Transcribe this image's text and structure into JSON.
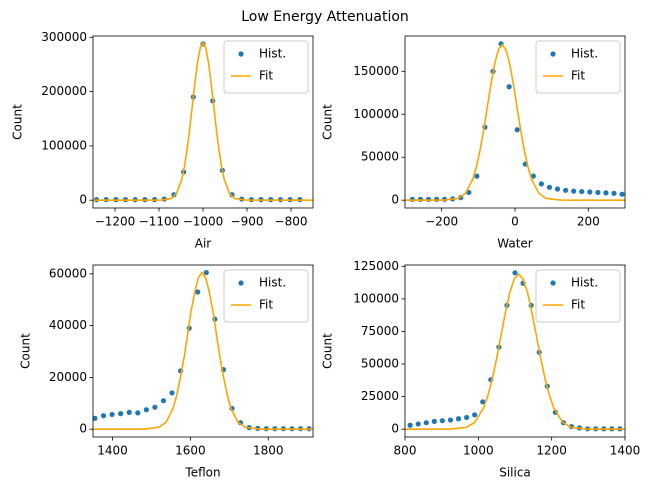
{
  "title": "Low Energy Attenuation",
  "chart_data": [
    {
      "type": "scatter",
      "x_label": "Air",
      "y_label": "Count",
      "legend": "upper right",
      "grid": false,
      "xlim": [
        -1250,
        -750
      ],
      "xticks": [
        {
          "value": -1200,
          "label": "−1200"
        },
        {
          "value": -1100,
          "label": "−1100"
        },
        {
          "value": -1000,
          "label": "−1000"
        },
        {
          "value": -900,
          "label": "−900"
        },
        {
          "value": -800,
          "label": "−800"
        }
      ],
      "ylim": [
        -14400,
        302400
      ],
      "yticks": [
        0,
        100000,
        200000,
        300000
      ],
      "series": [
        {
          "name": "Hist.",
          "type": "scatter",
          "color": "#1f77b4",
          "x": [
            -1242,
            -1220,
            -1198,
            -1176,
            -1154,
            -1132,
            -1110,
            -1088,
            -1066,
            -1044,
            -1022,
            -1000,
            -978,
            -956,
            -934,
            -912,
            -890,
            -868,
            -846,
            -824,
            -802,
            -780
          ],
          "values": [
            1000,
            1000,
            1000,
            1000,
            1000,
            1000,
            1000,
            2000,
            10000,
            52000,
            190000,
            288000,
            183000,
            55000,
            10000,
            2000,
            1000,
            1000,
            1000,
            1000,
            1000,
            1000
          ]
        },
        {
          "name": "Fit",
          "type": "line",
          "color": "#ffa500",
          "x": [
            -1250,
            -1096,
            -1072,
            -1060,
            -1048,
            -1042,
            -1036,
            -1030,
            -1024,
            -1018,
            -1012,
            -1006,
            -1000,
            -994,
            -988,
            -982,
            -976,
            -970,
            -964,
            -958,
            -952,
            -940,
            -928,
            -904,
            -750
          ],
          "values": [
            0,
            100,
            3200,
            12700,
            39200,
            62700,
            94200,
            132800,
            175900,
            218900,
            255900,
            281100,
            290000,
            281100,
            255900,
            218900,
            175900,
            132800,
            94200,
            62700,
            39200,
            12700,
            3200,
            100,
            0
          ]
        }
      ]
    },
    {
      "type": "scatter",
      "x_label": "Water",
      "y_label": "Count",
      "legend": "upper right",
      "grid": false,
      "xlim": [
        -300,
        300
      ],
      "xticks": [
        {
          "value": -200,
          "label": "−200"
        },
        0,
        200
      ],
      "ylim": [
        -9100,
        191100
      ],
      "yticks": [
        0,
        50000,
        100000,
        150000
      ],
      "series": [
        {
          "name": "Hist.",
          "type": "scatter",
          "color": "#1f77b4",
          "x": [
            -280,
            -258,
            -236,
            -214,
            -192,
            -170,
            -148,
            -126,
            -104,
            -82,
            -60,
            -38,
            -16,
            6,
            28,
            50,
            72,
            94,
            116,
            138,
            160,
            182,
            204,
            226,
            248,
            270,
            292
          ],
          "values": [
            1000,
            1000,
            1000,
            1000,
            1000,
            1500,
            3000,
            9000,
            28000,
            85000,
            150000,
            182000,
            132000,
            82000,
            42000,
            28000,
            19000,
            15000,
            13000,
            11500,
            10500,
            10000,
            9500,
            9000,
            8500,
            8000,
            7000
          ]
        },
        {
          "name": "Fit",
          "type": "line",
          "color": "#ffa500",
          "x": [
            -300,
            -195,
            -155,
            -135,
            -115,
            -105,
            -95,
            -85,
            -75,
            -65,
            -55,
            -45,
            -35,
            -25,
            -15,
            -5,
            5,
            15,
            25,
            35,
            45,
            65,
            85,
            125,
            300
          ],
          "values": [
            0,
            100,
            2000,
            7900,
            24500,
            39200,
            58800,
            82900,
            109800,
            136600,
            159700,
            175400,
            181000,
            175400,
            159700,
            136600,
            109800,
            82900,
            58800,
            39200,
            24500,
            7900,
            2000,
            100,
            0
          ]
        }
      ]
    },
    {
      "type": "scatter",
      "x_label": "Teflon",
      "y_label": "Count",
      "legend": "upper right",
      "grid": false,
      "xlim": [
        1350,
        1915
      ],
      "xticks": [
        1400,
        1600,
        1800
      ],
      "ylim": [
        -3020,
        63420
      ],
      "yticks": [
        0,
        20000,
        40000,
        60000
      ],
      "series": [
        {
          "name": "Hist.",
          "type": "scatter",
          "color": "#1f77b4",
          "x": [
            1355,
            1377,
            1399,
            1421,
            1443,
            1465,
            1487,
            1509,
            1531,
            1553,
            1575,
            1597,
            1619,
            1641,
            1663,
            1685,
            1707,
            1729,
            1751,
            1773,
            1795,
            1817,
            1839,
            1861,
            1883,
            1905
          ],
          "values": [
            4200,
            5200,
            5700,
            6000,
            6500,
            6300,
            7500,
            8500,
            11000,
            14000,
            22500,
            39000,
            53000,
            60500,
            42500,
            23000,
            8000,
            2500,
            600,
            300,
            200,
            200,
            200,
            200,
            200,
            200
          ]
        },
        {
          "name": "Fit",
          "type": "line",
          "color": "#ffa500",
          "x": [
            1350,
            1482,
            1519,
            1538,
            1556,
            1565,
            1574,
            1584,
            1593,
            1602,
            1612,
            1621,
            1630,
            1639,
            1648,
            1658,
            1667,
            1676,
            1686,
            1695,
            1704,
            1722,
            1741,
            1778,
            1915
          ],
          "values": [
            0,
            0,
            700,
            2700,
            8200,
            13100,
            19600,
            27700,
            36700,
            45700,
            53400,
            58600,
            60500,
            58600,
            53400,
            45700,
            36700,
            27700,
            19600,
            13100,
            8200,
            2700,
            700,
            0,
            0
          ]
        }
      ]
    },
    {
      "type": "scatter",
      "x_label": "Silica",
      "y_label": "Count",
      "legend": "upper right",
      "grid": false,
      "xlim": [
        800,
        1400
      ],
      "xticks": [
        800,
        1000,
        1200,
        1400
      ],
      "ylim": [
        -6000,
        126000
      ],
      "yticks": [
        0,
        25000,
        50000,
        75000,
        100000,
        125000
      ],
      "series": [
        {
          "name": "Hist.",
          "type": "scatter",
          "color": "#1f77b4",
          "x": [
            814,
            836,
            858,
            880,
            902,
            924,
            946,
            968,
            990,
            1012,
            1034,
            1056,
            1078,
            1100,
            1122,
            1144,
            1166,
            1188,
            1210,
            1232,
            1254,
            1276,
            1298,
            1320,
            1342,
            1364,
            1386
          ],
          "values": [
            3000,
            4000,
            5000,
            6000,
            6500,
            7000,
            8000,
            9000,
            11000,
            21000,
            38000,
            63000,
            95000,
            120000,
            112000,
            95000,
            59000,
            33000,
            13000,
            5000,
            2000,
            1000,
            300,
            300,
            300,
            300,
            300
          ]
        },
        {
          "name": "Fit",
          "type": "line",
          "color": "#ffa500",
          "x": [
            800,
            918,
            966,
            990,
            1014,
            1026,
            1038,
            1050,
            1062,
            1074,
            1086,
            1098,
            1110,
            1122,
            1134,
            1146,
            1158,
            1170,
            1182,
            1194,
            1206,
            1230,
            1254,
            1302,
            1400
          ],
          "values": [
            0,
            0,
            1300,
            5200,
            16100,
            25700,
            38600,
            54500,
            72200,
            89800,
            105000,
            115300,
            119000,
            115300,
            105000,
            89800,
            72200,
            54500,
            38600,
            25700,
            16100,
            5200,
            1300,
            0,
            0
          ]
        }
      ]
    }
  ]
}
